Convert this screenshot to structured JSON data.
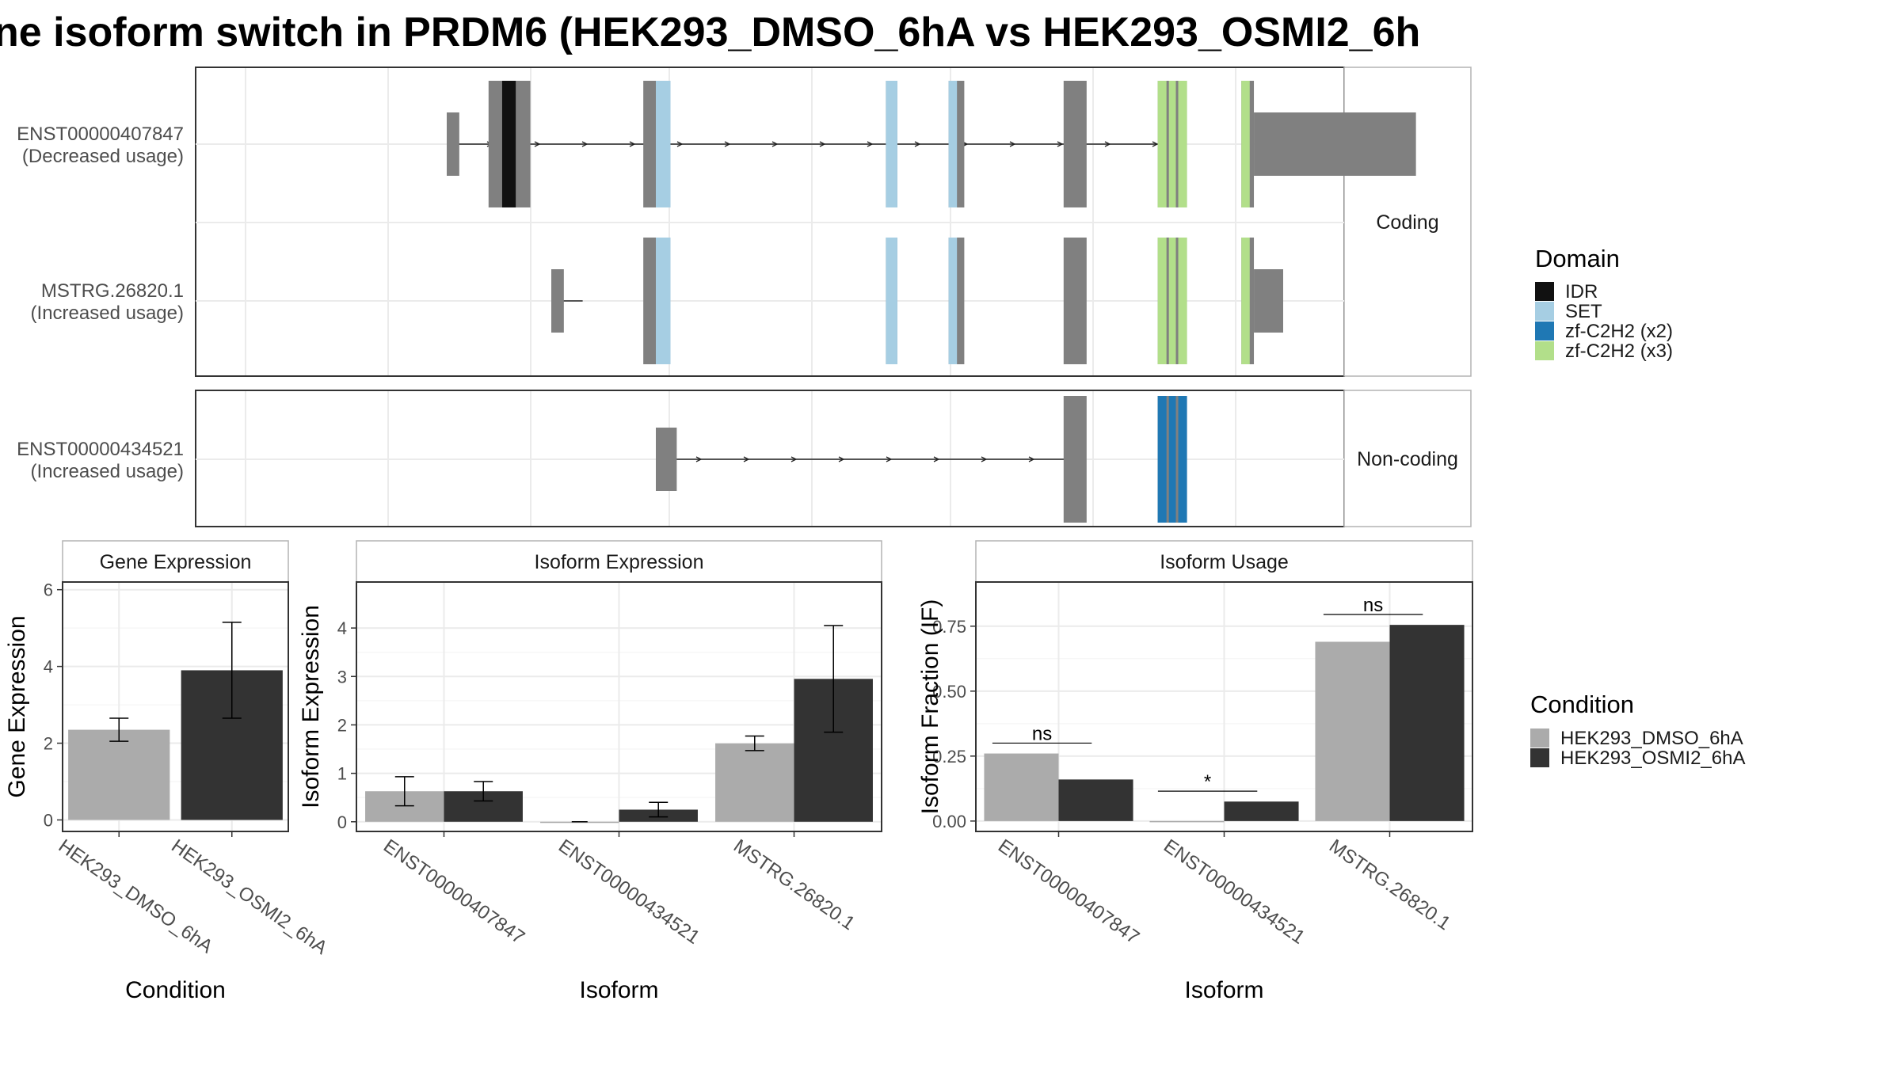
{
  "title": "ne isoform switch in PRDM6 (HEK293_DMSO_6hA vs HEK293_OSMI2_6h",
  "colors": {
    "exon": "#808080",
    "IDR": "#111111",
    "SET": "#a6cee3",
    "zf2": "#1f78b4",
    "zf3": "#b2df8a",
    "dmso": "#ababab",
    "osmi": "#333333",
    "panel_border": "#333333",
    "strip_border": "#b3b3b3",
    "grid": "#ebebeb"
  },
  "transcripts": {
    "coding_label": "Coding",
    "noncoding_label": "Non-coding",
    "x_range": [
      0,
      1000
    ],
    "rows": [
      {
        "id": "ENST00000407847",
        "usage": "(Decreased usage)",
        "group": "coding",
        "line": [
          200,
          895
        ],
        "exons": [
          {
            "s": 200,
            "e": 212,
            "h": "utr"
          },
          {
            "s": 240,
            "e": 280,
            "h": "cds"
          },
          {
            "s": 388,
            "e": 414,
            "h": "cds"
          },
          {
            "s": 620,
            "e": 631,
            "h": "cds"
          },
          {
            "s": 680,
            "e": 695,
            "h": "cds"
          },
          {
            "s": 790,
            "e": 812,
            "h": "cds"
          },
          {
            "s": 880,
            "e": 908,
            "h": "cds"
          },
          {
            "s": 960,
            "e": 972,
            "h": "cds"
          },
          {
            "s": 972,
            "e": 1127,
            "h": "utr"
          }
        ],
        "domains": [
          {
            "s": 253,
            "e": 266,
            "d": "IDR"
          },
          {
            "s": 400,
            "e": 414,
            "d": "SET"
          },
          {
            "s": 620,
            "e": 631,
            "d": "SET"
          },
          {
            "s": 680,
            "e": 688,
            "d": "SET"
          },
          {
            "s": 880,
            "e": 908,
            "d": "zf3"
          },
          {
            "s": 960,
            "e": 968,
            "d": "zf3"
          }
        ]
      },
      {
        "id": "MSTRG.26820.1",
        "usage": "(Increased usage)",
        "group": "coding",
        "line": [
          300,
          330
        ],
        "exons": [
          {
            "s": 300,
            "e": 312,
            "h": "utr"
          },
          {
            "s": 388,
            "e": 414,
            "h": "cds"
          },
          {
            "s": 620,
            "e": 631,
            "h": "cds"
          },
          {
            "s": 680,
            "e": 695,
            "h": "cds"
          },
          {
            "s": 790,
            "e": 812,
            "h": "cds"
          },
          {
            "s": 880,
            "e": 908,
            "h": "cds"
          },
          {
            "s": 960,
            "e": 972,
            "h": "cds"
          },
          {
            "s": 972,
            "e": 1000,
            "h": "utr"
          }
        ],
        "domains": [
          {
            "s": 400,
            "e": 414,
            "d": "SET"
          },
          {
            "s": 620,
            "e": 631,
            "d": "SET"
          },
          {
            "s": 680,
            "e": 688,
            "d": "SET"
          },
          {
            "s": 880,
            "e": 908,
            "d": "zf3"
          },
          {
            "s": 960,
            "e": 968,
            "d": "zf3"
          }
        ]
      },
      {
        "id": "ENST00000434521",
        "usage": "(Increased usage)",
        "group": "noncoding",
        "line": [
          400,
          800
        ],
        "exons": [
          {
            "s": 400,
            "e": 420,
            "h": "utr"
          },
          {
            "s": 790,
            "e": 812,
            "h": "cds"
          },
          {
            "s": 880,
            "e": 908,
            "h": "cds"
          }
        ],
        "domains": [
          {
            "s": 880,
            "e": 908,
            "d": "zf2"
          }
        ]
      }
    ]
  },
  "legend_domain": {
    "title": "Domain",
    "items": [
      {
        "label": "IDR",
        "color": "#111111"
      },
      {
        "label": "SET",
        "color": "#a6cee3"
      },
      {
        "label": "zf-C2H2 (x2)",
        "color": "#1f78b4"
      },
      {
        "label": "zf-C2H2 (x3)",
        "color": "#b2df8a"
      }
    ]
  },
  "legend_condition": {
    "title": "Condition",
    "items": [
      {
        "label": "HEK293_DMSO_6hA",
        "color": "#ababab"
      },
      {
        "label": "HEK293_OSMI2_6hA",
        "color": "#333333"
      }
    ]
  },
  "chart_data": [
    {
      "type": "bar",
      "strip": "Gene Expression",
      "xlabel": "Condition",
      "ylabel": "Gene Expression",
      "ylim": [
        -0.3,
        6.2
      ],
      "yticks": [
        0,
        2,
        4,
        6
      ],
      "categories": [
        "HEK293_DMSO_6hA",
        "HEK293_OSMI2_6hA"
      ],
      "series": [
        {
          "name": "HEK293_DMSO_6hA",
          "values": [
            2.35,
            null
          ],
          "err": [
            0.3,
            null
          ]
        },
        {
          "name": "HEK293_OSMI2_6hA",
          "values": [
            null,
            3.9
          ],
          "err": [
            null,
            1.25
          ]
        }
      ]
    },
    {
      "type": "bar",
      "strip": "Isoform Expression",
      "xlabel": "Isoform",
      "ylabel": "Isoform Expression",
      "ylim": [
        -0.2,
        4.95
      ],
      "yticks": [
        0,
        1,
        2,
        3,
        4
      ],
      "categories": [
        "ENST00000407847",
        "ENST00000434521",
        "MSTRG.26820.1"
      ],
      "series": [
        {
          "name": "HEK293_DMSO_6hA",
          "values": [
            0.63,
            0.0,
            1.62
          ],
          "err": [
            0.3,
            0.0,
            0.15
          ]
        },
        {
          "name": "HEK293_OSMI2_6hA",
          "values": [
            0.63,
            0.25,
            2.95
          ],
          "err": [
            0.2,
            0.15,
            1.1
          ]
        }
      ]
    },
    {
      "type": "bar",
      "strip": "Isoform Usage",
      "xlabel": "Isoform",
      "ylabel": "Isoform Fraction (IF)",
      "ylim": [
        -0.04,
        0.92
      ],
      "yticks": [
        0.0,
        0.25,
        0.5,
        0.75
      ],
      "ytick_labels": [
        "0.00",
        "0.25",
        "0.50",
        "0.75"
      ],
      "categories": [
        "ENST00000407847",
        "ENST00000434521",
        "MSTRG.26820.1"
      ],
      "series": [
        {
          "name": "HEK293_DMSO_6hA",
          "values": [
            0.26,
            0.0,
            0.69
          ]
        },
        {
          "name": "HEK293_OSMI2_6hA",
          "values": [
            0.16,
            0.075,
            0.755
          ]
        }
      ],
      "significance": [
        {
          "category": 0,
          "label": "ns",
          "y": 0.3
        },
        {
          "category": 1,
          "label": "*",
          "y": 0.115
        },
        {
          "category": 2,
          "label": "ns",
          "y": 0.795
        }
      ]
    }
  ]
}
